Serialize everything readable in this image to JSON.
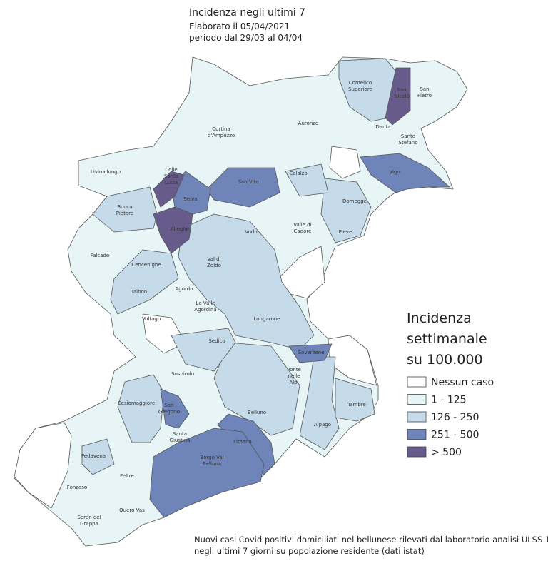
{
  "header": {
    "title": "Incidenza  negli  ultimi  7",
    "elaborated": "Elaborato il 05/04/2021",
    "period": "periodo  dal 29/03 al 04/04"
  },
  "legend": {
    "title": [
      "Incidenza",
      "settimanale",
      "su 100.000"
    ],
    "items": [
      {
        "label": "Nessun caso",
        "color": "#ffffff"
      },
      {
        "label": "1 - 125",
        "color": "#e8f5f7"
      },
      {
        "label": "126 - 250",
        "color": "#c6dbea"
      },
      {
        "label": "251 - 500",
        "color": "#6f84b8"
      },
      {
        "label": "> 500",
        "color": "#675b8c"
      }
    ]
  },
  "municipalities": [
    [
      "Comelico",
      "Superiore"
    ],
    [
      "San",
      "Nicolò"
    ],
    [
      "San",
      "Pietro"
    ],
    [
      "Cortina",
      "d'Ampezzo"
    ],
    [
      "Auronzo"
    ],
    [
      "Danta"
    ],
    [
      "Santo",
      "Stefano"
    ],
    [
      "Livinallongo"
    ],
    [
      "Colle",
      "Santa",
      "Lucia"
    ],
    [
      "Selva"
    ],
    [
      "San Vito"
    ],
    [
      "Calalzo"
    ],
    [
      "Vigo"
    ],
    [
      "Rocca",
      "Pietore"
    ],
    [
      "Domegge"
    ],
    [
      "Alleghe"
    ],
    [
      "Vodo"
    ],
    [
      "Valle di",
      "Cadore"
    ],
    [
      "Pieve"
    ],
    [
      "Falcade"
    ],
    [
      "Cencenighe"
    ],
    [
      "Val di",
      "Zoldo"
    ],
    [
      "Taibon"
    ],
    [
      "Agordo"
    ],
    [
      "La Valle",
      "Agordina"
    ],
    [
      "Voltago"
    ],
    [
      "Longarone"
    ],
    [
      "Sedico"
    ],
    [
      "Soverzene"
    ],
    [
      "Sospirolo"
    ],
    [
      "Ponte",
      "nelle",
      "Alpi"
    ],
    [
      "Cesiomaggiore"
    ],
    [
      "San",
      "Gregorio"
    ],
    [
      "Belluno"
    ],
    [
      "Tambre"
    ],
    [
      "Limana"
    ],
    [
      "Santa",
      "Giustina"
    ],
    [
      "Alpago"
    ],
    [
      "Pedavena"
    ],
    [
      "Borgo Val",
      "Belluna"
    ],
    [
      "Feltre"
    ],
    [
      "Fonzaso"
    ],
    [
      "Quero Vas"
    ],
    [
      "Seren del",
      "Grappa"
    ]
  ],
  "footer": [
    "Nuovi casi Covid positivi domiciliati nel bellunese rilevati dal laboratorio analisi ULSS 1",
    "negli ultimi 7 giorni su popolazione residente (dati istat)"
  ]
}
